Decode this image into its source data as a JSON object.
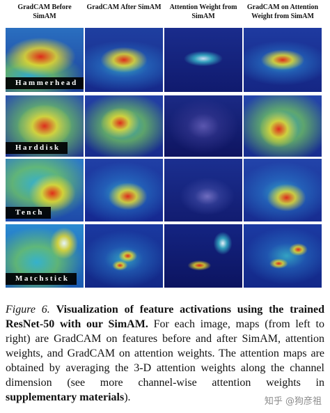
{
  "figure": {
    "column_headers": [
      "GradCAM Before SimAM",
      "GradCAM After SimAM",
      "Attention Weight from SimAM",
      "GradCAM on Attention Weight from SimAM"
    ],
    "row_labels": [
      "Hammerhead",
      "Harddisk",
      "Tench",
      "Matchstick"
    ]
  },
  "caption": {
    "label": "Figure 6.",
    "bold_title": "Visualization of feature activations using the trained ResNet-50 with our SimAM.",
    "body": "For each image, maps (from left to right) are GradCAM on features before and after SimAM, attention weights, and GradCAM on attention weights. The attention maps are obtained by averaging the 3-D attention weights along the channel dimension (see more channel-wise attention weights in",
    "bold_link": "supplementary materials",
    "end": ")."
  },
  "watermark": "知乎 @狗彦祖"
}
